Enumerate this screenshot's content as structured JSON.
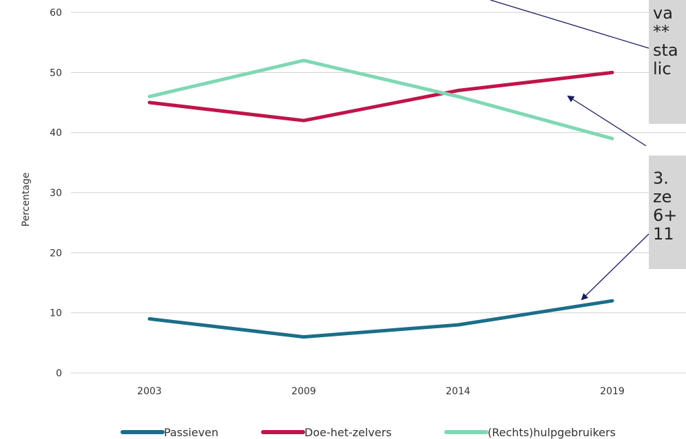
{
  "chart_data": {
    "type": "line",
    "categories": [
      "2003",
      "2009",
      "2014",
      "2019"
    ],
    "series": [
      {
        "name": "Passieven",
        "color": "#1b6e8a",
        "values": [
          9,
          6,
          8,
          12
        ]
      },
      {
        "name": "Doe-het-zelvers",
        "color": "#c0144a",
        "values": [
          45,
          42,
          47,
          50
        ]
      },
      {
        "name": "(Rechts)hulpgebruikers",
        "color": "#7fd8b4",
        "values": [
          46,
          52,
          46,
          39
        ]
      }
    ],
    "ylabel": "Percentage",
    "ylim": [
      0,
      60
    ],
    "yticks": [
      "0",
      "10",
      "20",
      "30",
      "40",
      "50",
      "60"
    ],
    "grid": true,
    "legend_position": "bottom"
  },
  "callouts": [
    {
      "text": "va\n**\nsta\nlic"
    },
    {
      "text": "3.\nze\n6+\n11"
    }
  ],
  "colors": {
    "grid": "#d0d0d0",
    "arrow": "#1a1a5e",
    "callout_bg": "#d6d6d6"
  }
}
